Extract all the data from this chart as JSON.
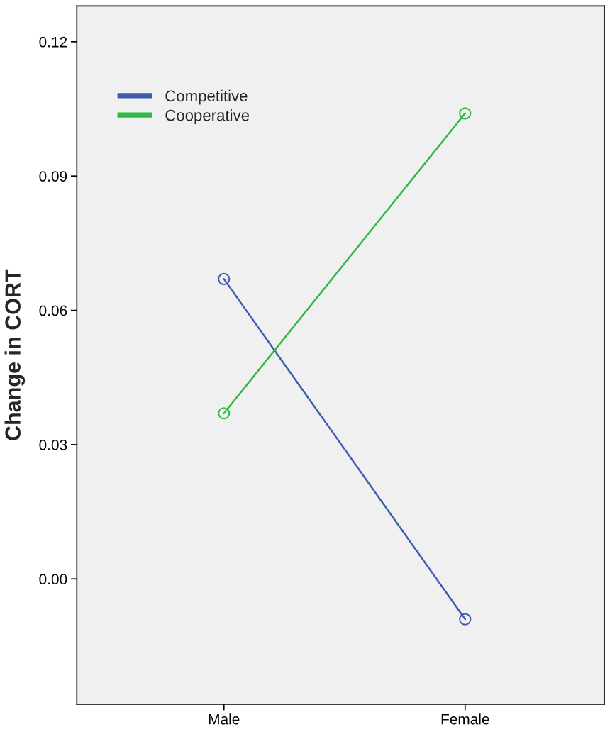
{
  "chart_data": {
    "type": "line",
    "ylabel": "Change in CORT",
    "categories": [
      "Male",
      "Female"
    ],
    "series": [
      {
        "name": "Competitive",
        "color": "#3f5bb0",
        "values": [
          0.067,
          -0.009
        ]
      },
      {
        "name": "Cooperative",
        "color": "#2fb845",
        "values": [
          0.037,
          0.104
        ]
      }
    ],
    "ylim": [
      -0.028,
      0.128
    ],
    "yticks": [
      {
        "value": 0,
        "label": "0.00"
      },
      {
        "value": 0.03,
        "label": "0.03"
      },
      {
        "value": 0.06,
        "label": "0.06"
      },
      {
        "value": 0.09,
        "label": "0.09"
      },
      {
        "value": 0.12,
        "label": "0.12"
      }
    ],
    "marker": "circle",
    "legend": "top left",
    "grid": false
  }
}
